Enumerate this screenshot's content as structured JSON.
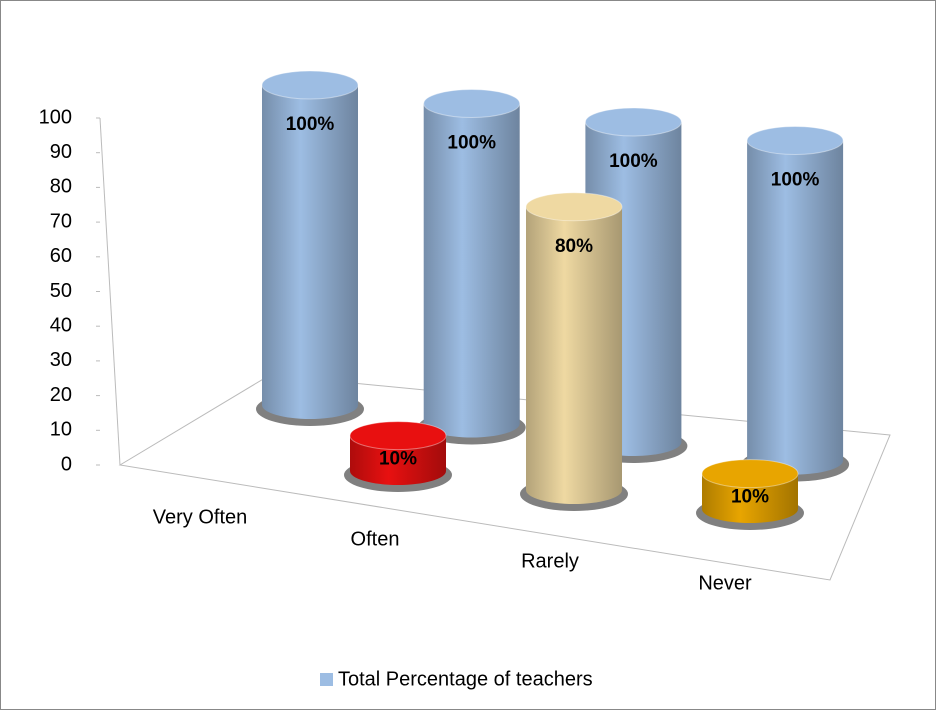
{
  "chart_data": {
    "type": "cylinder3d",
    "categories": [
      "Very Often",
      "Often",
      "Rarely",
      "Never"
    ],
    "ylim": [
      0,
      100
    ],
    "yticks": [
      0,
      10,
      20,
      30,
      40,
      50,
      60,
      70,
      80,
      90,
      100
    ],
    "legend": "bottom",
    "series": [
      {
        "name": "Total Percentage of teachers",
        "color": "#9dbde3",
        "values": [
          100,
          100,
          100,
          100
        ],
        "value_labels": [
          "100%",
          "100%",
          "100%",
          "100%"
        ]
      },
      {
        "colors": [
          null,
          "#e81010",
          "#efd9a2",
          "#e8a500"
        ],
        "values": [
          null,
          10,
          80,
          10
        ],
        "value_labels": [
          null,
          "10%",
          "80%",
          "10%"
        ]
      }
    ]
  }
}
